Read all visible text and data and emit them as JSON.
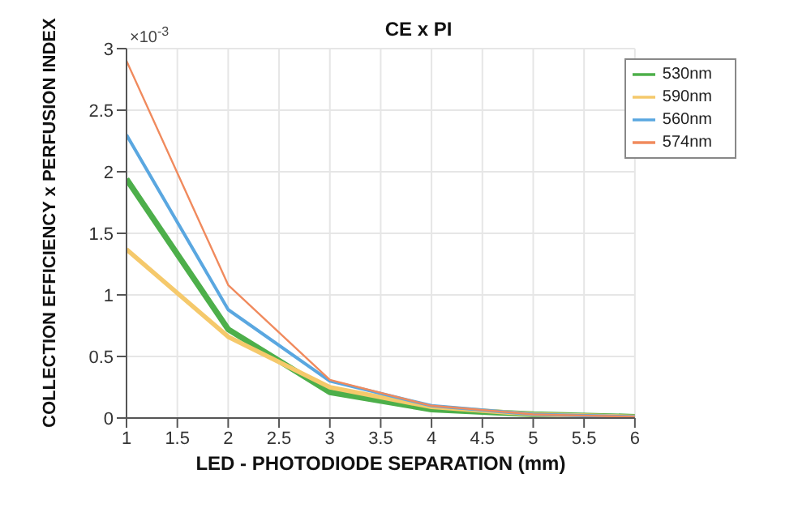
{
  "chart_data": {
    "type": "line",
    "title": "CE x PI",
    "xlabel": "LED - PHOTODIODE SEPARATION (mm)",
    "ylabel": "COLLECTION EFFICIENCY x PERFUSION INDEX",
    "annotations": [
      "×10$^{-3}$"
    ],
    "x": [
      1,
      2,
      3,
      4,
      5,
      6
    ],
    "series": [
      {
        "name": "530nm",
        "color": "#4daf4a",
        "values": [
          1.94,
          0.72,
          0.21,
          0.07,
          0.03,
          0.01
        ]
      },
      {
        "name": "590nm",
        "color": "#f5c96b",
        "values": [
          1.37,
          0.66,
          0.25,
          0.09,
          0.03,
          0.01
        ]
      },
      {
        "name": "560nm",
        "color": "#5aa7e0",
        "values": [
          2.3,
          0.88,
          0.3,
          0.1,
          0.03,
          0.01
        ]
      },
      {
        "name": "574nm",
        "color": "#f08a5d",
        "values": [
          2.9,
          1.08,
          0.31,
          0.1,
          0.03,
          0.01
        ]
      }
    ],
    "xlim": [
      1,
      6
    ],
    "xticks": [
      1,
      1.5,
      2,
      2.5,
      3,
      3.5,
      4,
      4.5,
      5,
      5.5,
      6
    ],
    "ylim": [
      0,
      3
    ],
    "yticks": [
      0,
      0.5,
      1,
      1.5,
      2,
      2.5,
      3
    ],
    "grid": true,
    "legend": "top right",
    "marker": "none",
    "line_style": "solid"
  }
}
